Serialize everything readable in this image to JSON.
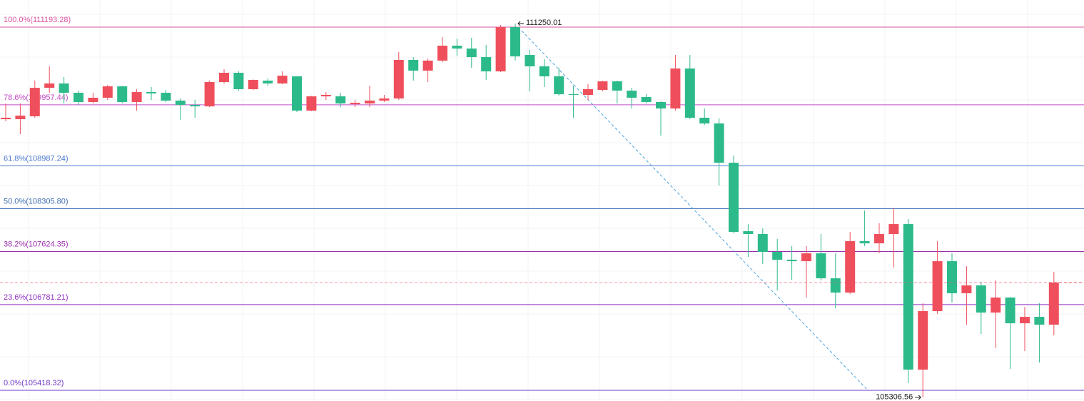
{
  "chart_data": {
    "type": "candlestick",
    "up_color": "#ef4f5c",
    "down_color": "#2dba8b",
    "ylim": [
      105248,
      111624
    ],
    "fib_levels": [
      {
        "label": "100.0%(111193.28)",
        "value": 111193.28,
        "color": "#d9539f"
      },
      {
        "label": "78.6%(109957.44)",
        "value": 109957.44,
        "color": "#c44cc8"
      },
      {
        "label": "61.8%(108987.24)",
        "value": 108987.24,
        "color": "#4a78d0"
      },
      {
        "label": "50.0%(108305.80)",
        "value": 108305.8,
        "color": "#3f6fb5"
      },
      {
        "label": "38.2%(107624.35)",
        "value": 107624.35,
        "color": "#9a2fae"
      },
      {
        "label": "23.6%(106781.21)",
        "value": 106781.21,
        "color": "#8f2dc2"
      },
      {
        "label": "0.0%(105418.32)",
        "value": 105418.32,
        "color": "#7238c9"
      }
    ],
    "annotations": [
      {
        "text": "111250.01"
      },
      {
        "text": "105306.56"
      }
    ],
    "ohlc": [
      [
        109729,
        109979,
        109695,
        109752
      ],
      [
        109729,
        109979,
        109491,
        109786
      ],
      [
        109775,
        110342,
        109752,
        110228
      ],
      [
        110228,
        110569,
        110149,
        110297
      ],
      [
        110297,
        110399,
        109979,
        110149
      ],
      [
        110149,
        110183,
        109956,
        110002
      ],
      [
        110002,
        110149,
        109979,
        110070
      ],
      [
        110070,
        110274,
        110036,
        110251
      ],
      [
        110251,
        110260,
        109979,
        110002
      ],
      [
        110002,
        110206,
        109865,
        110160
      ],
      [
        110160,
        110240,
        110036,
        110138
      ],
      [
        110149,
        110194,
        110002,
        110024
      ],
      [
        110024,
        110058,
        109718,
        109956
      ],
      [
        109956,
        110036,
        109752,
        109933
      ],
      [
        109933,
        110342,
        109922,
        110319
      ],
      [
        110319,
        110523,
        110297,
        110467
      ],
      [
        110467,
        110489,
        110183,
        110206
      ],
      [
        110206,
        110360,
        110194,
        110353
      ],
      [
        110342,
        110376,
        110262,
        110297
      ],
      [
        110297,
        110489,
        110285,
        110421
      ],
      [
        110410,
        110415,
        109843,
        109865
      ],
      [
        109865,
        110100,
        109854,
        110092
      ],
      [
        110092,
        110160,
        110036,
        110115
      ],
      [
        110092,
        110149,
        109922,
        109979
      ],
      [
        109967,
        110036,
        109922,
        109990
      ],
      [
        109979,
        110262,
        109922,
        110024
      ],
      [
        110024,
        110115,
        110002,
        110058
      ],
      [
        110058,
        110796,
        110036,
        110671
      ],
      [
        110671,
        110716,
        110342,
        110501
      ],
      [
        110501,
        110694,
        110319,
        110660
      ],
      [
        110660,
        111034,
        110637,
        110898
      ],
      [
        110898,
        111011,
        110739,
        110852
      ],
      [
        110852,
        111023,
        110546,
        110716
      ],
      [
        110716,
        110909,
        110353,
        110489
      ],
      [
        110489,
        111227,
        110478,
        111193
      ],
      [
        111193,
        111250.01,
        110660,
        110728
      ],
      [
        110750,
        110830,
        110172,
        110569
      ],
      [
        110569,
        110682,
        110240,
        110410
      ],
      [
        110410,
        110546,
        110104,
        110126
      ],
      [
        110126,
        110262,
        109752,
        110115
      ],
      [
        110115,
        110285,
        110036,
        110206
      ],
      [
        110194,
        110340,
        110172,
        110331
      ],
      [
        110331,
        110342,
        109979,
        110183
      ],
      [
        110183,
        110228,
        109899,
        110070
      ],
      [
        110081,
        110126,
        109979,
        110002
      ],
      [
        110002,
        110013,
        109468,
        109899
      ],
      [
        109899,
        110750,
        109865,
        110535
      ],
      [
        110535,
        110750,
        109729,
        109752
      ],
      [
        109752,
        109899,
        109638,
        109661
      ],
      [
        109661,
        109741,
        108674,
        109037
      ],
      [
        109037,
        109151,
        107914,
        107937
      ],
      [
        107948,
        108061,
        107539,
        107903
      ],
      [
        107903,
        107993,
        107426,
        107619
      ],
      [
        107619,
        107823,
        107006,
        107494
      ],
      [
        107494,
        107710,
        107176,
        107471
      ],
      [
        107471,
        107710,
        106893,
        107596
      ],
      [
        107596,
        107903,
        107165,
        107199
      ],
      [
        107199,
        107596,
        106723,
        106972
      ],
      [
        106972,
        107937,
        106949,
        107789
      ],
      [
        107789,
        108277,
        107710,
        107755
      ],
      [
        107755,
        108073,
        107596,
        107903
      ],
      [
        107903,
        108322,
        107369,
        108061
      ],
      [
        108061,
        108141,
        105531,
        105747
      ],
      [
        105747,
        106802,
        105306.56,
        106677
      ],
      [
        106677,
        107789,
        106632,
        107471
      ],
      [
        107471,
        107596,
        106813,
        106961
      ],
      [
        106961,
        107392,
        106462,
        107086
      ],
      [
        107086,
        107142,
        106314,
        106654
      ],
      [
        106654,
        107165,
        106087,
        106893
      ],
      [
        106893,
        106900,
        105758,
        106484
      ],
      [
        106484,
        106745,
        106042,
        106586
      ],
      [
        106586,
        106802,
        105860,
        106462
      ],
      [
        106462,
        107301,
        106291,
        107131
      ]
    ]
  }
}
